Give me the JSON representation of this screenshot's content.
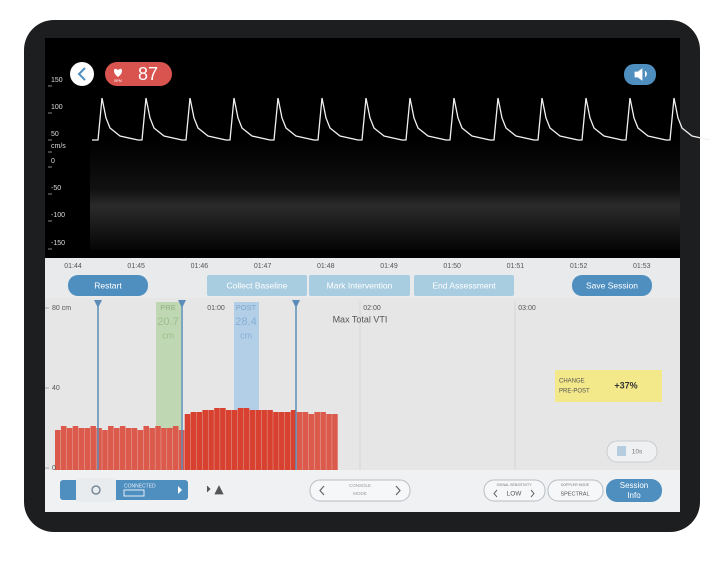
{
  "doppler": {
    "heart_rate": "87",
    "heart_rate_unit": "BPM",
    "axis_labels": [
      "150",
      "100",
      "50",
      "cm/s",
      "0",
      "-50",
      "-100",
      "-150"
    ],
    "time_labels": [
      "01:44",
      "01:45",
      "01:46",
      "01:47",
      "01:48",
      "01:49",
      "01:50",
      "01:51",
      "01:52",
      "01:53"
    ]
  },
  "buttons": [
    "Restart",
    "Collect Baseline",
    "Mark Intervention",
    "End Assessment",
    "Save Session"
  ],
  "vti_chart": {
    "title": "Max Total VTI",
    "ylim": [
      0,
      80
    ],
    "yticks": [
      {
        "value": 80,
        "label": "80 cm"
      },
      40,
      0
    ],
    "time_labels": [
      "01:00",
      "02:00",
      "03:00"
    ],
    "pre": {
      "label": "PRE",
      "value": "20.7",
      "unit": "cm"
    },
    "post": {
      "label": "POST",
      "value": "28.4",
      "unit": "cm"
    },
    "values": [
      19,
      21,
      20,
      21,
      20,
      20,
      21,
      20,
      19,
      21,
      20,
      21,
      20,
      20,
      19,
      21,
      20,
      21,
      20,
      20,
      21,
      19,
      27,
      28,
      28,
      29,
      29,
      30,
      30,
      29,
      29,
      30,
      30,
      29,
      29,
      29,
      29,
      28,
      28,
      28,
      29,
      28,
      28,
      27,
      28,
      28,
      27,
      27
    ],
    "change": {
      "label_line1": "CHANGE",
      "label_line2": "PRE-POST",
      "value": "+37%"
    },
    "window_button": "10s"
  },
  "toolbar": {
    "status": "CONNECTED",
    "console_mode": [
      "CONSOLE",
      "MODE"
    ],
    "signal_sensitivity": {
      "label": "SIGNAL SENSITIVITY",
      "value": "LOW"
    },
    "doppler_mode": {
      "label": "DOPPLER MODE",
      "value": "SPECTRAL"
    },
    "session_info": [
      "Session",
      "Info"
    ]
  }
}
